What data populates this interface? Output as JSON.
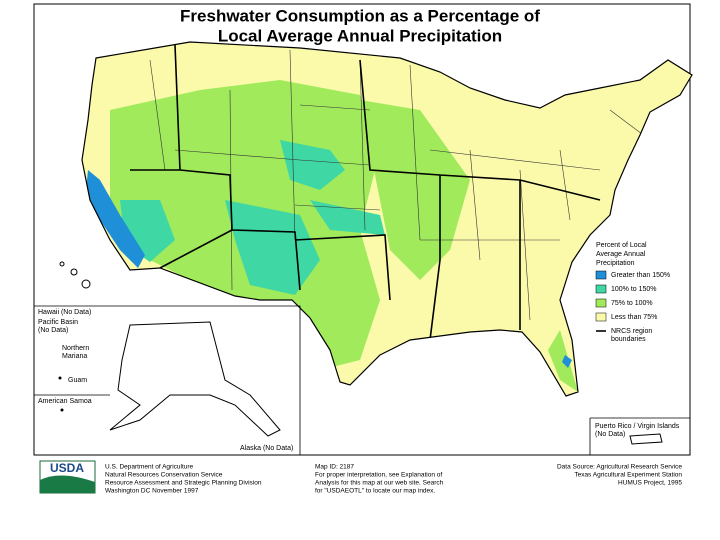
{
  "title": [
    "Freshwater Consumption as a Percentage of",
    "Local Average Annual Precipitation"
  ],
  "legend": {
    "title": [
      "Percent of Local",
      "Average Annual",
      "Precipitation"
    ],
    "items": [
      {
        "label": "Greater than 150%",
        "color": "#1f8fd8"
      },
      {
        "label": "100% to 150%",
        "color": "#3fd8a4"
      },
      {
        "label": "75% to 100%",
        "color": "#a0ea5c"
      },
      {
        "label": "Less than 75%",
        "color": "#fafaaa"
      }
    ],
    "boundary_label": [
      "NRCS region",
      "boundaries"
    ]
  },
  "insets": {
    "hawaii": "Hawaii (No Data)",
    "pacific_basin": [
      "Pacific Basin",
      "(No Data)"
    ],
    "northern_mariana": [
      "Northern",
      "Mariana"
    ],
    "guam": "Guam",
    "american_samoa": "American Samoa",
    "alaska": "Alaska (No Data)",
    "puerto_rico": [
      "Puerto Rico / Virgin Islands",
      "(No Data)"
    ]
  },
  "footer": {
    "logo": "USDA",
    "agency": [
      "U.S. Department of Agriculture",
      "Natural Resources Conservation Service",
      "Resource Assessment and Strategic Planning Division",
      "Washington DC   November 1997"
    ],
    "map_info": [
      "Map ID: 2187",
      "For proper interpretation, see Explanation of",
      "Analysis for this map at our web site. Search",
      "for \"USDAEOTL\" to locate our map index."
    ],
    "source": [
      "Data Source: Agricultural Research Service",
      "Texas Agricultural Experiment Station",
      "HUMUS Project, 1995"
    ]
  }
}
